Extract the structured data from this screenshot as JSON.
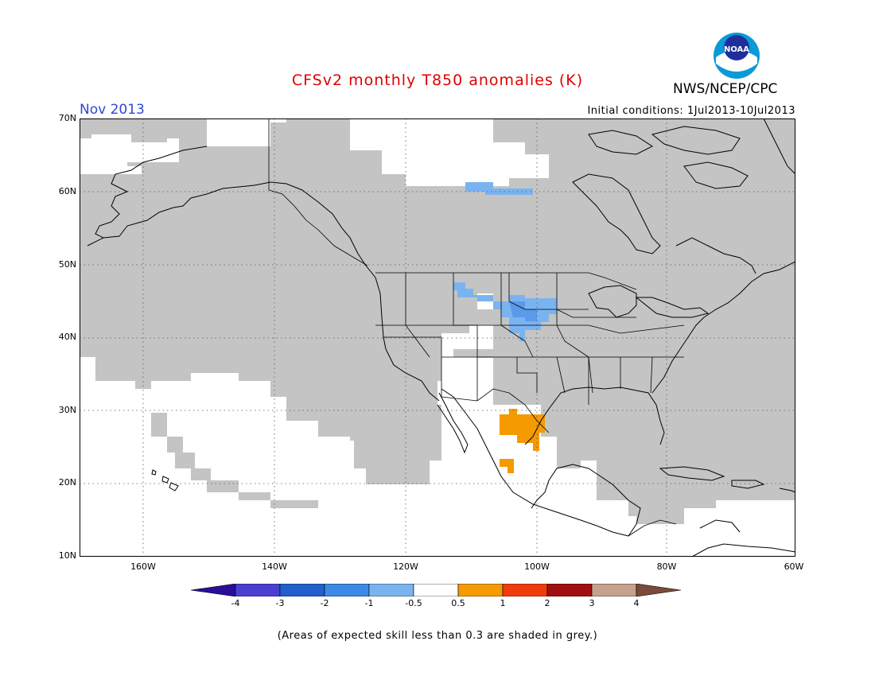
{
  "header": {
    "title": "CFSv2 monthly T850 anomalies (K)",
    "agency": "NWS/NCEP/CPC",
    "month": "Nov 2013",
    "initial_conditions": "Initial conditions: 1Jul2013-10Jul2013",
    "logo_text": "NOAA"
  },
  "map": {
    "lat_labels": [
      "70N",
      "60N",
      "50N",
      "40N",
      "30N",
      "20N",
      "10N"
    ],
    "lon_labels": [
      "160W",
      "140W",
      "120W",
      "100W",
      "80W",
      "60W"
    ],
    "colors": {
      "skill_grey": "#c4c4c4",
      "cold_-1": "#7ab4f0",
      "cold_-2": "#5a9ae8",
      "warm_1": "#f59a00",
      "coast": "#000000"
    }
  },
  "colorbar": {
    "tick_labels": [
      "-4",
      "-3",
      "-2",
      "-1",
      "-0.5",
      "0.5",
      "1",
      "2",
      "3",
      "4"
    ],
    "colors": [
      "#2a0e9a",
      "#4b3fd1",
      "#2160cc",
      "#3c8ae6",
      "#7ab4f0",
      "#ffffff",
      "#f59a00",
      "#f23b0c",
      "#a01010",
      "#c7a08e",
      "#7a4a3a"
    ]
  },
  "footnote": "(Areas of expected skill less than 0.3 are shaded in grey.)"
}
